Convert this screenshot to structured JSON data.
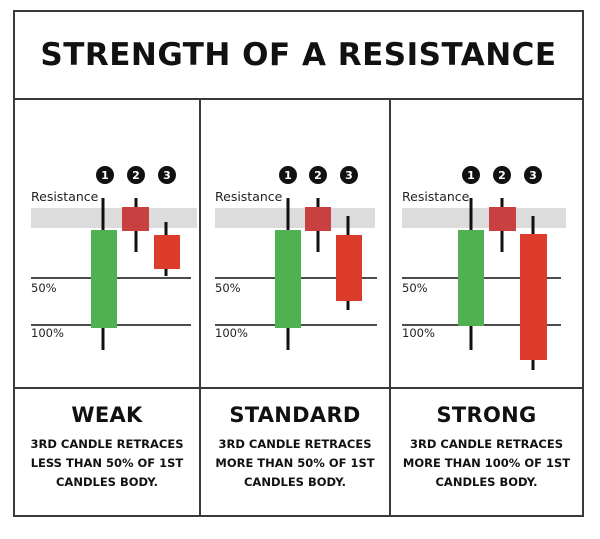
{
  "title": "STRENGTH OF A RESISTANCE",
  "markers": [
    "1",
    "2",
    "3"
  ],
  "colors": {
    "green": "#4fb14f",
    "red": "#dd3b2b",
    "resistance_band": "#dcdcdc",
    "resistance_candle": "#c94040",
    "wick": "#111111",
    "line": "#111111"
  },
  "panels": [
    {
      "resistance_label": "Resistance",
      "level_50_label": "50%",
      "level_100_label": "100%",
      "verdict": "WEAK",
      "description_lines": [
        "3RD CANDLE RETRACES",
        "LESS THAN 50% OF 1ST",
        "CANDLES BODY."
      ]
    },
    {
      "resistance_label": "Resistance",
      "level_50_label": "50%",
      "level_100_label": "100%",
      "verdict": "STANDARD",
      "description_lines": [
        "3RD CANDLE RETRACES",
        "MORE THAN 50% OF 1ST",
        "CANDLES BODY."
      ]
    },
    {
      "resistance_label": "Resistance",
      "level_50_label": "50%",
      "level_100_label": "100%",
      "verdict": "STRONG",
      "description_lines": [
        "3RD CANDLE RETRACES",
        "MORE THAN 100% OF 1ST",
        "CANDLES BODY."
      ]
    }
  ]
}
